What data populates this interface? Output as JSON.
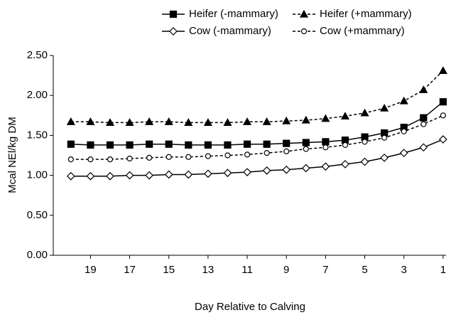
{
  "chart_data": {
    "type": "line",
    "xlabel": "Day Relative to Calving",
    "ylabel": "Mcal NEl/kg DM",
    "x": [
      20,
      19,
      18,
      17,
      16,
      15,
      14,
      13,
      12,
      11,
      10,
      9,
      8,
      7,
      6,
      5,
      4,
      3,
      2,
      1
    ],
    "xlim": [
      20.9,
      0.85
    ],
    "xticks": [
      19,
      17,
      15,
      13,
      11,
      9,
      7,
      5,
      3,
      1
    ],
    "ylim": [
      0,
      2.5
    ],
    "yticks": [
      {
        "value": 0,
        "label": "0.00"
      },
      {
        "value": 0.5,
        "label": "0.50"
      },
      {
        "value": 1,
        "label": "1.00"
      },
      {
        "value": 1.5,
        "label": "1.50"
      },
      {
        "value": 2,
        "label": "2.00"
      },
      {
        "value": 2.5,
        "label": "2.50"
      }
    ],
    "series": [
      {
        "name": "Heifer (-mammary)",
        "color": "#000000",
        "dash": "solid",
        "marker": "square",
        "values": [
          1.39,
          1.38,
          1.38,
          1.38,
          1.39,
          1.39,
          1.38,
          1.38,
          1.38,
          1.39,
          1.39,
          1.4,
          1.41,
          1.42,
          1.44,
          1.48,
          1.53,
          1.6,
          1.72,
          1.92
        ]
      },
      {
        "name": "Heifer (+mammary)",
        "color": "#000000",
        "dash": "dashed",
        "marker": "triangle",
        "values": [
          1.67,
          1.67,
          1.66,
          1.66,
          1.67,
          1.67,
          1.66,
          1.66,
          1.66,
          1.67,
          1.67,
          1.68,
          1.69,
          1.71,
          1.74,
          1.78,
          1.84,
          1.93,
          2.07,
          2.31
        ]
      },
      {
        "name": "Cow (-mammary)",
        "color": "#000000",
        "dash": "solid",
        "marker": "diamond",
        "values": [
          0.99,
          0.99,
          0.99,
          1.0,
          1.0,
          1.01,
          1.01,
          1.02,
          1.03,
          1.04,
          1.06,
          1.07,
          1.09,
          1.11,
          1.14,
          1.17,
          1.22,
          1.28,
          1.35,
          1.45
        ]
      },
      {
        "name": "Cow (+mammary)",
        "color": "#000000",
        "dash": "dashed",
        "marker": "circle",
        "values": [
          1.2,
          1.2,
          1.2,
          1.21,
          1.22,
          1.23,
          1.23,
          1.24,
          1.25,
          1.26,
          1.28,
          1.3,
          1.33,
          1.35,
          1.38,
          1.42,
          1.47,
          1.55,
          1.64,
          1.75
        ]
      }
    ]
  }
}
